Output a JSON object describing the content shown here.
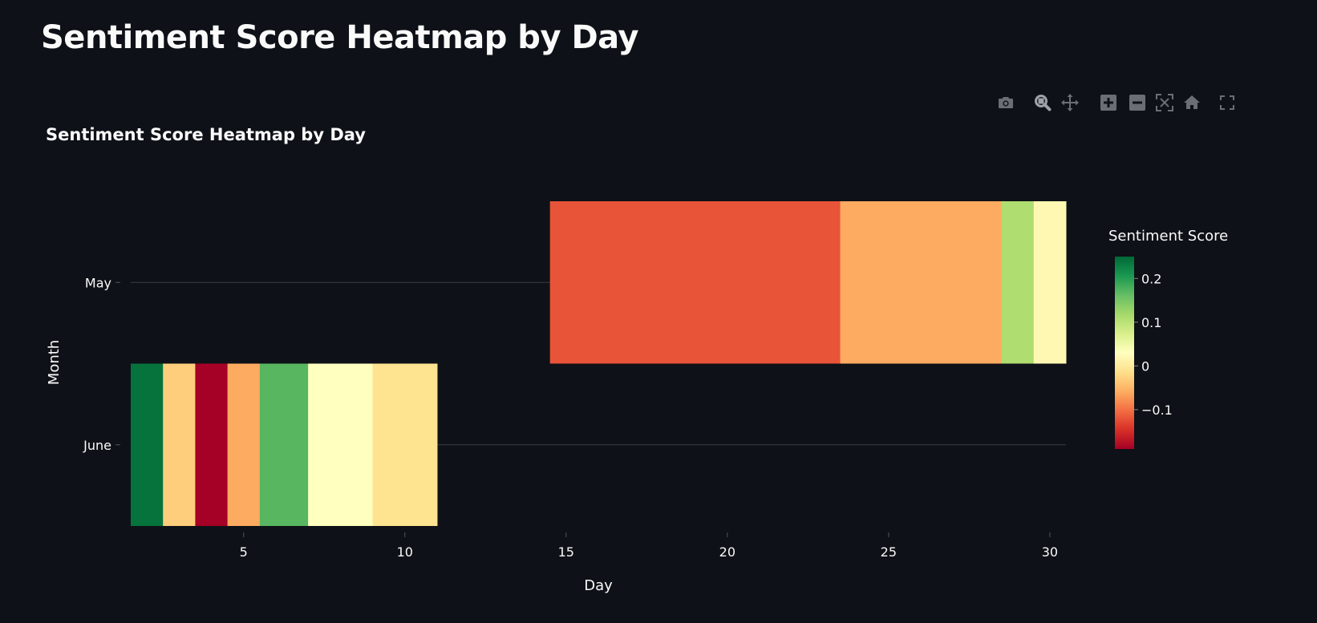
{
  "page": {
    "title": "Sentiment Score Heatmap by Day"
  },
  "toolbar": {
    "buttons": [
      {
        "name": "camera-icon",
        "title": "Download plot as a png"
      },
      {
        "name": "zoom-icon",
        "title": "Zoom"
      },
      {
        "name": "pan-icon",
        "title": "Pan"
      },
      {
        "name": "zoom-in-icon",
        "title": "Zoom in"
      },
      {
        "name": "zoom-out-icon",
        "title": "Zoom out"
      },
      {
        "name": "autoscale-icon",
        "title": "Autoscale"
      },
      {
        "name": "home-icon",
        "title": "Reset axes"
      },
      {
        "name": "fullscreen-icon",
        "title": "Fullscreen"
      }
    ]
  },
  "chart_data": {
    "type": "heatmap",
    "title": "Sentiment Score Heatmap by Day",
    "xlabel": "Day",
    "ylabel": "Month",
    "colorbar_title": "Sentiment Score",
    "x_range": [
      1.5,
      30.5
    ],
    "x_ticks": [
      5,
      10,
      15,
      20,
      25,
      30
    ],
    "y_categories": [
      "June",
      "May"
    ],
    "colorscale": "RdYlGn",
    "color_range": [
      -0.19,
      0.25
    ],
    "colorbar_ticks": [
      -0.1,
      0,
      0.1,
      0.2
    ],
    "colorbar_tick_labels": [
      "−0.1",
      "0",
      "0.1",
      "0.2"
    ],
    "cells": [
      {
        "month": "June",
        "day": 2,
        "value": 0.24
      },
      {
        "month": "June",
        "day": 3,
        "value": -0.03
      },
      {
        "month": "June",
        "day": 4,
        "value": -0.19
      },
      {
        "month": "June",
        "day": 5,
        "value": -0.06
      },
      {
        "month": "June",
        "day": 6,
        "value": 0.17
      },
      {
        "month": "June",
        "day": 8,
        "value": 0.03
      },
      {
        "month": "June",
        "day": 10,
        "value": -0.01
      },
      {
        "month": "May",
        "day": 19,
        "value": -0.12
      },
      {
        "month": "May",
        "day": 28,
        "value": -0.06
      },
      {
        "month": "May",
        "day": 29,
        "value": 0.11
      },
      {
        "month": "May",
        "day": 30,
        "value": 0.02
      }
    ],
    "grid": true,
    "legend": "right"
  }
}
